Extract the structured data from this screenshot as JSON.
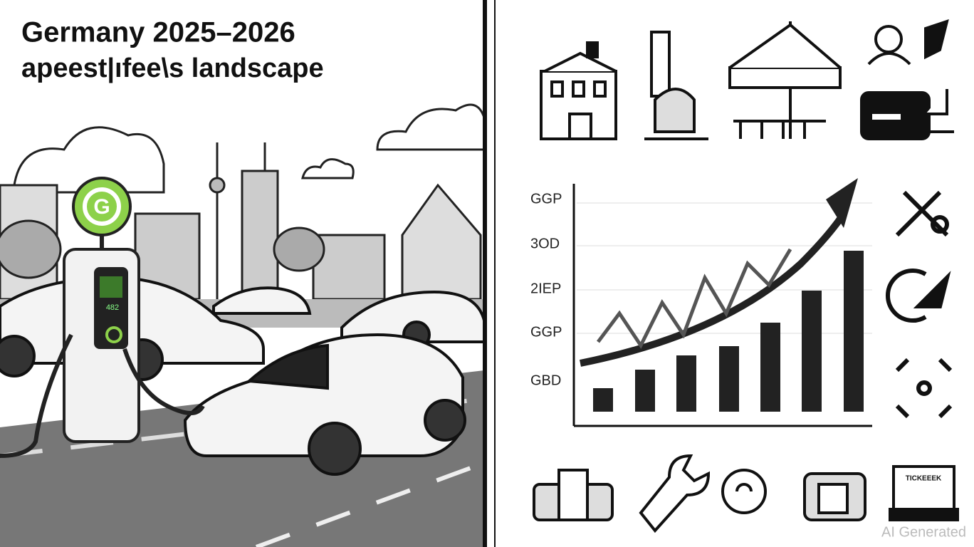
{
  "header": {
    "title": "Germany 2025–2026",
    "subtitle": "apeest|ıfee\\s landscape"
  },
  "charger": {
    "logo": "G",
    "screen": "482"
  },
  "chart": {
    "axis_labels": [
      "GGP",
      "3OD",
      "2IEP",
      "GGP",
      "GBD"
    ]
  },
  "ticket": "TICKEEEK",
  "watermark": "AI Generated"
}
